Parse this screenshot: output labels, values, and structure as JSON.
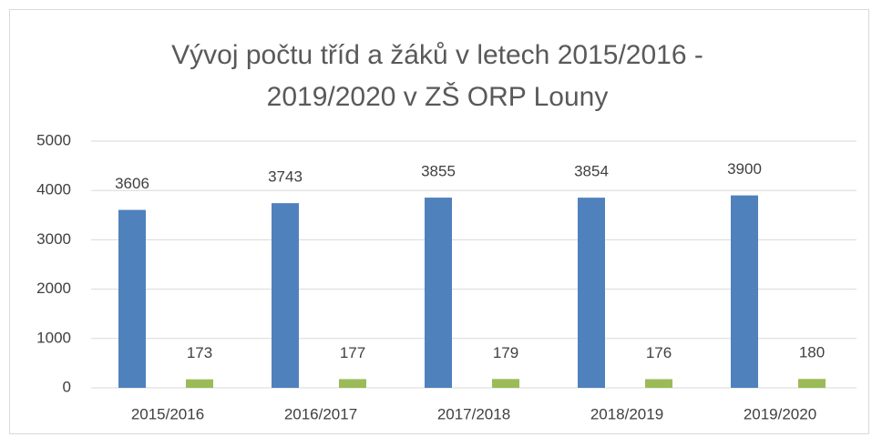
{
  "chart_data": {
    "type": "bar",
    "title": "Vývoj počtu tříd a žáků v letech 2015/2016 - 2019/2020 v ZŠ ORP Louny",
    "categories": [
      "2015/2016",
      "2016/2017",
      "2017/2018",
      "2018/2019",
      "2019/2020"
    ],
    "series": [
      {
        "color": "#4f81bd",
        "values": [
          3606,
          3743,
          3855,
          3854,
          3900
        ]
      },
      {
        "color": "#9bbb59",
        "values": [
          173,
          177,
          179,
          176,
          180
        ]
      }
    ],
    "ylim": [
      0,
      5000
    ],
    "yticks": [
      0,
      1000,
      2000,
      3000,
      4000,
      5000
    ],
    "grid": true
  }
}
